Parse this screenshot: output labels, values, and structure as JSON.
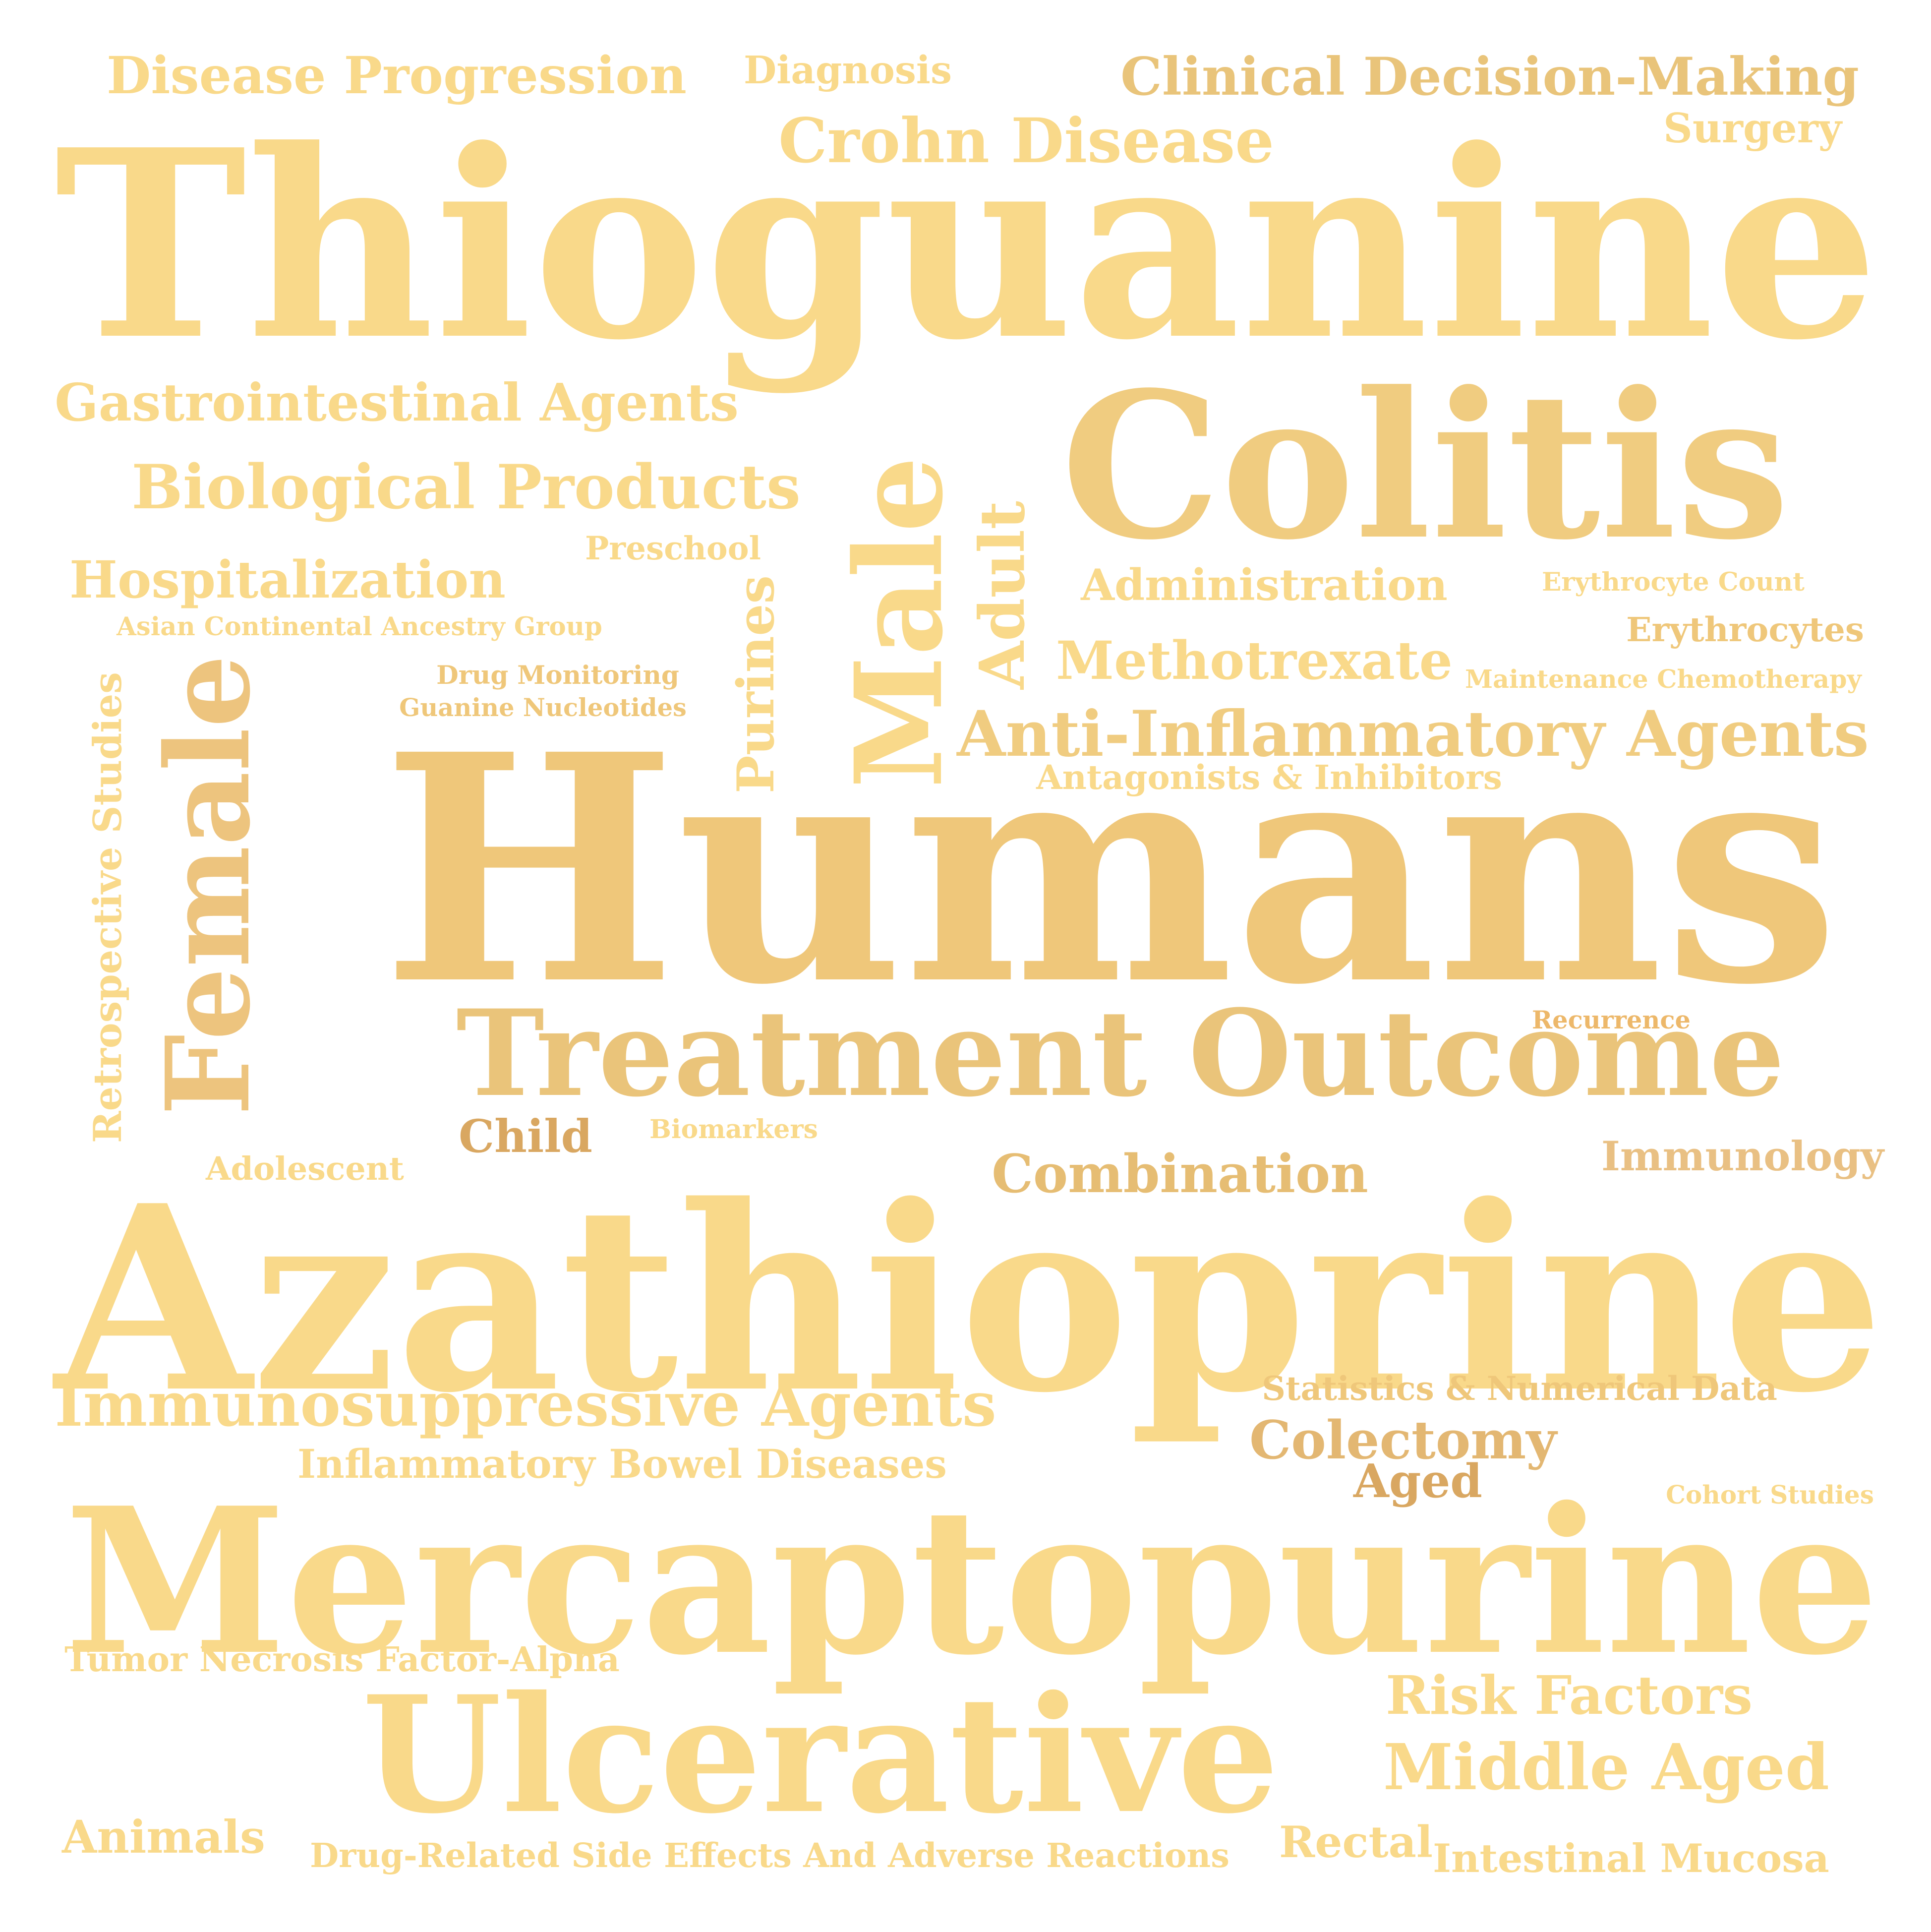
{
  "words": [
    {
      "text": "Thioguanine",
      "color": "#F9D98A",
      "vertical": false
    },
    {
      "text": "Humans",
      "color": "#EFC77A",
      "vertical": false
    },
    {
      "text": "Azathioprine",
      "color": "#F9D98A",
      "vertical": false
    },
    {
      "text": "Mercaptopurine",
      "color": "#F9D98A",
      "vertical": false
    },
    {
      "text": "Colitis",
      "color": "#F0CC80",
      "vertical": false
    },
    {
      "text": "Ulcerative",
      "color": "#F9D98A",
      "vertical": false
    },
    {
      "text": "Treatment Outcome",
      "color": "#EAC47A",
      "vertical": false
    },
    {
      "text": "Female",
      "color": "#EDC47E",
      "vertical": true
    },
    {
      "text": "Male",
      "color": "#F9D98A",
      "vertical": true
    },
    {
      "text": "Crohn Disease",
      "color": "#F9D98A",
      "vertical": false
    },
    {
      "text": "Clinical Decision-Making",
      "color": "#E9C47A",
      "vertical": false
    },
    {
      "text": "Disease Progression",
      "color": "#F9D98A",
      "vertical": false
    },
    {
      "text": "Diagnosis",
      "color": "#F9D98A",
      "vertical": false
    },
    {
      "text": "Surgery",
      "color": "#F9D98A",
      "vertical": false
    },
    {
      "text": "Gastrointestinal Agents",
      "color": "#F9D98A",
      "vertical": false
    },
    {
      "text": "Biological Products",
      "color": "#F9D98A",
      "vertical": false
    },
    {
      "text": "Preschool",
      "color": "#F9D98A",
      "vertical": false
    },
    {
      "text": "Hospitalization",
      "color": "#F9D98A",
      "vertical": false
    },
    {
      "text": "Asian Continental Ancestry Group",
      "color": "#F9D98A",
      "vertical": false
    },
    {
      "text": "Adult",
      "color": "#F9D98A",
      "vertical": true
    },
    {
      "text": "Purines",
      "color": "#F9D98A",
      "vertical": true
    },
    {
      "text": "Administration",
      "color": "#F9D98A",
      "vertical": false
    },
    {
      "text": "Erythrocyte Count",
      "color": "#F9D98A",
      "vertical": false
    },
    {
      "text": "Erythrocytes",
      "color": "#EFC77A",
      "vertical": false
    },
    {
      "text": "Methotrexate",
      "color": "#F9D98A",
      "vertical": false
    },
    {
      "text": "Maintenance Chemotherapy",
      "color": "#F9D98A",
      "vertical": false
    },
    {
      "text": "Drug Monitoring",
      "color": "#EFC77A",
      "vertical": false
    },
    {
      "text": "Guanine Nucleotides",
      "color": "#EFC77A",
      "vertical": false
    },
    {
      "text": "Anti-Inflammatory Agents",
      "color": "#F0CC80",
      "vertical": false
    },
    {
      "text": "Antagonists & Inhibitors",
      "color": "#F9D98A",
      "vertical": false
    },
    {
      "text": "Retrospective Studies",
      "color": "#F9D98A",
      "vertical": true
    },
    {
      "text": "Recurrence",
      "color": "#EDB86A",
      "vertical": false
    },
    {
      "text": "Child",
      "color": "#D9A761",
      "vertical": false
    },
    {
      "text": "Biomarkers",
      "color": "#F9D98A",
      "vertical": false
    },
    {
      "text": "Adolescent",
      "color": "#F9D98A",
      "vertical": false
    },
    {
      "text": "Combination",
      "color": "#E6BD73",
      "vertical": false
    },
    {
      "text": "Immunology",
      "color": "#E9C083",
      "vertical": false
    },
    {
      "text": "Immunosuppressive Agents",
      "color": "#F9D98A",
      "vertical": false
    },
    {
      "text": "Statistics & Numerical Data",
      "color": "#EFC77A",
      "vertical": false
    },
    {
      "text": "Colectomy",
      "color": "#E3B772",
      "vertical": false
    },
    {
      "text": "Inflammatory Bowel Diseases",
      "color": "#F9D98A",
      "vertical": false
    },
    {
      "text": "Aged",
      "color": "#D9A761",
      "vertical": false
    },
    {
      "text": "Cohort Studies",
      "color": "#F9D98A",
      "vertical": false
    },
    {
      "text": "Tumor Necrosis Factor-Alpha",
      "color": "#F9D98A",
      "vertical": false
    },
    {
      "text": "Risk Factors",
      "color": "#F9D98A",
      "vertical": false
    },
    {
      "text": "Middle Aged",
      "color": "#F9D98A",
      "vertical": false
    },
    {
      "text": "Animals",
      "color": "#F9D98A",
      "vertical": false
    },
    {
      "text": "Drug-Related Side Effects And Adverse Reactions",
      "color": "#F9D98A",
      "vertical": false
    },
    {
      "text": "Rectal",
      "color": "#F9D98A",
      "vertical": false
    },
    {
      "text": "Intestinal Mucosa",
      "color": "#F9D98A",
      "vertical": false
    }
  ]
}
